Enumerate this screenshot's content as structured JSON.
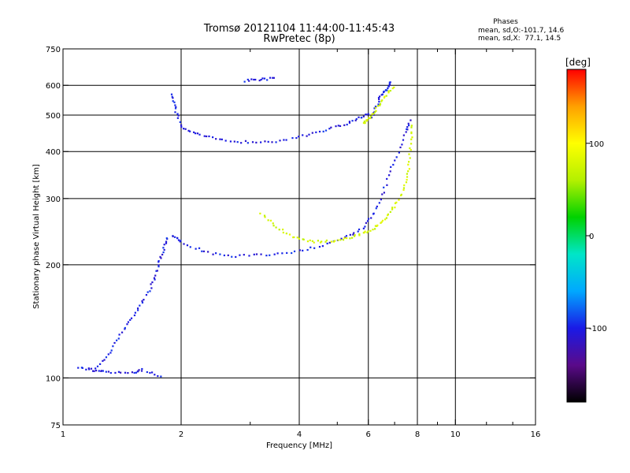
{
  "header": {
    "title_line1": "Tromsø 20121104 11:44:00-11:45:43",
    "title_line2": "RwPretec (8p)"
  },
  "phases_box": {
    "heading": "Phases",
    "line_o": "mean, sd,O:-101.7, 14.6",
    "line_x": "mean, sd,X:  77.1, 14.5"
  },
  "colorbar": {
    "unit": "[deg]",
    "tick_labels": [
      "100",
      "0",
      "-100"
    ],
    "tick_values": [
      100,
      0,
      -100
    ],
    "range": [
      -180,
      180
    ]
  },
  "chart_data": {
    "type": "scatter",
    "title": "Tromsø 20121104 11:44:00-11:45:43",
    "subtitle": "RwPretec (8p)",
    "xlabel": "Frequency [MHz]",
    "ylabel": "Stationary phase Virtual Height [km]",
    "x_scale": "log",
    "y_scale": "log",
    "xlim": [
      1,
      16
    ],
    "ylim": [
      75,
      750
    ],
    "x_ticks": [
      1,
      2,
      4,
      6,
      8,
      10,
      16
    ],
    "x_tick_labels": [
      "1",
      "2",
      "4",
      "6",
      "8",
      "10",
      "16"
    ],
    "y_ticks": [
      75,
      100,
      200,
      300,
      400,
      500,
      600,
      750
    ],
    "y_tick_labels": [
      "75",
      "100",
      "200",
      "300",
      "400",
      "500",
      "600",
      "750"
    ],
    "grid": true,
    "grid_x": [
      2,
      4,
      6,
      8,
      10
    ],
    "grid_y": [
      100,
      200,
      300,
      400,
      500,
      600
    ],
    "minor_x_ticks": [
      3,
      5,
      7,
      9,
      12,
      14
    ],
    "color_scale": {
      "label": "[deg]",
      "min": -180,
      "max": 180,
      "colors": [
        "#000000",
        "#5a0a8a",
        "#1a1ae6",
        "#00a8ff",
        "#00e6c8",
        "#00d200",
        "#b4f000",
        "#ffff00",
        "#ffa000",
        "#ff0000"
      ]
    },
    "phase_means": {
      "o": -101.7,
      "x": 77.1
    },
    "series": [
      {
        "name": "O",
        "phase_deg": -101.7,
        "curves": [
          {
            "x": [
              1.2,
              1.3,
              1.4,
              1.5,
              1.6,
              1.7,
              1.75,
              1.8,
              1.85
            ],
            "y": [
              105,
              115,
              130,
              145,
              160,
              180,
              200,
              220,
              240
            ]
          },
          {
            "x": [
              1.9,
              2.0,
              2.3,
              2.7,
              3.2,
              3.8,
              4.5,
              5.2,
              5.8,
              6.2,
              6.6,
              7.0,
              7.5,
              7.7
            ],
            "y": [
              240,
              230,
              216,
              211,
              212,
              216,
              224,
              235,
              250,
              275,
              320,
              380,
              450,
              490
            ]
          },
          {
            "x": [
              1.9,
              1.93,
              2.0,
              2.2,
              2.5,
              2.9,
              3.4,
              4.0,
              4.6,
              5.2,
              5.7,
              6.0
            ],
            "y": [
              570,
              520,
              465,
              445,
              430,
              424,
              425,
              437,
              455,
              472,
              492,
              505
            ]
          },
          {
            "x": [
              6.1,
              6.3,
              6.5,
              6.7,
              6.9
            ],
            "y": [
              490,
              530,
              570,
              590,
              620
            ]
          },
          {
            "x": [
              2.9,
              3.2,
              3.5
            ],
            "y": [
              617,
              622,
              628
            ]
          },
          {
            "x": [
              1.1,
              1.2,
              1.3,
              1.5,
              1.6,
              1.8
            ],
            "y": [
              106,
              105,
              104,
              103,
              105,
              100
            ]
          }
        ]
      },
      {
        "name": "X",
        "phase_deg": 77.1,
        "curves": [
          {
            "x": [
              3.2,
              3.5,
              3.9,
              4.3,
              4.8,
              5.3,
              5.8,
              6.2,
              6.6,
              7.0,
              7.4,
              7.6,
              7.7,
              7.75
            ],
            "y": [
              272,
              252,
              236,
              230,
              231,
              235,
              242,
              250,
              265,
              285,
              320,
              360,
              420,
              480
            ]
          },
          {
            "x": [
              5.8,
              6.0,
              6.3,
              6.6,
              7.0
            ],
            "y": [
              475,
              490,
              520,
              560,
              600
            ]
          }
        ]
      }
    ]
  }
}
